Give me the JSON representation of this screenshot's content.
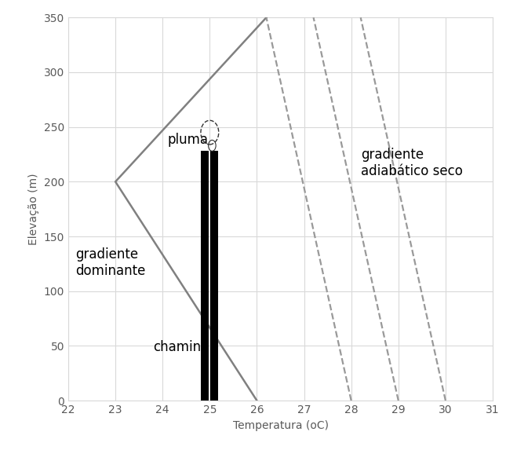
{
  "chart_data": {
    "type": "line",
    "x_label": "Temperatura (oC)",
    "y_label": "Elevação (m)",
    "xlim": [
      22,
      31
    ],
    "xticks": [
      22,
      23,
      24,
      25,
      26,
      27,
      28,
      29,
      30,
      31
    ],
    "ylim": [
      0,
      350
    ],
    "yticks": [
      0,
      50,
      100,
      150,
      200,
      250,
      300,
      350
    ],
    "grid": true,
    "series": [
      {
        "name": "gradiente\ndominante",
        "color": "#808080",
        "line_style": "solid",
        "x": [
          26,
          23,
          26.2
        ],
        "values": [
          0,
          200,
          350
        ]
      },
      {
        "name": "gradiente\nadiabático seco",
        "color": "#999999",
        "line_style": "dashed",
        "lines": [
          {
            "x": [
              28,
              26.2
            ],
            "values": [
              0,
              350
            ]
          },
          {
            "x": [
              29,
              27.2
            ],
            "values": [
              0,
              350
            ]
          },
          {
            "x": [
              30,
              28.2
            ],
            "values": [
              0,
              350
            ]
          }
        ]
      }
    ],
    "chimney": {
      "label": "chaminé",
      "x": [
        24.9,
        25.1
      ],
      "values": [
        228,
        228
      ],
      "color": "#000000"
    },
    "plume": {
      "label": "pluma",
      "x": 25,
      "y": 245
    }
  }
}
